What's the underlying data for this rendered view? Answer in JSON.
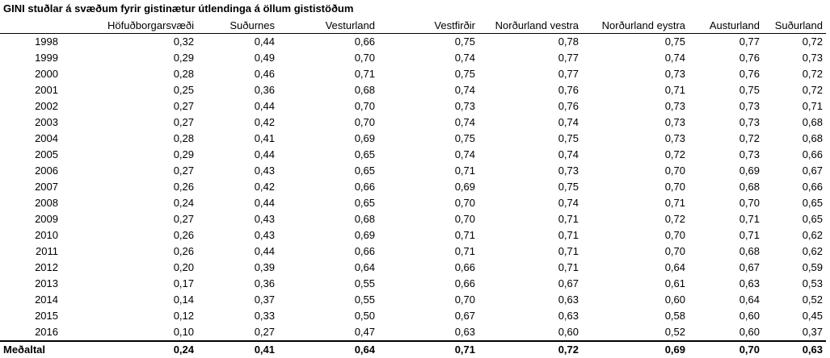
{
  "title": "GINI stuðlar á svæðum fyrir gistinætur útlendinga á öllum gististöðum",
  "chart_data": {
    "type": "table",
    "columns": [
      "",
      "Höfuðborgarsvæði",
      "Suðurnes",
      "Vesturland",
      "Vestfirðir",
      "Norðurland vestra",
      "Norðurland eystra",
      "Austurland",
      "Suðurland"
    ],
    "rows": [
      {
        "year": "1998",
        "values": [
          "0,32",
          "0,44",
          "0,66",
          "0,75",
          "0,78",
          "0,75",
          "0,77",
          "0,72"
        ]
      },
      {
        "year": "1999",
        "values": [
          "0,29",
          "0,49",
          "0,70",
          "0,74",
          "0,77",
          "0,74",
          "0,76",
          "0,73"
        ]
      },
      {
        "year": "2000",
        "values": [
          "0,28",
          "0,46",
          "0,71",
          "0,75",
          "0,77",
          "0,73",
          "0,76",
          "0,72"
        ]
      },
      {
        "year": "2001",
        "values": [
          "0,25",
          "0,36",
          "0,68",
          "0,74",
          "0,76",
          "0,71",
          "0,75",
          "0,72"
        ]
      },
      {
        "year": "2002",
        "values": [
          "0,27",
          "0,44",
          "0,70",
          "0,73",
          "0,76",
          "0,73",
          "0,73",
          "0,71"
        ]
      },
      {
        "year": "2003",
        "values": [
          "0,27",
          "0,42",
          "0,70",
          "0,74",
          "0,74",
          "0,73",
          "0,73",
          "0,68"
        ]
      },
      {
        "year": "2004",
        "values": [
          "0,28",
          "0,41",
          "0,69",
          "0,75",
          "0,75",
          "0,73",
          "0,72",
          "0,68"
        ]
      },
      {
        "year": "2005",
        "values": [
          "0,29",
          "0,44",
          "0,65",
          "0,74",
          "0,74",
          "0,72",
          "0,73",
          "0,66"
        ]
      },
      {
        "year": "2006",
        "values": [
          "0,27",
          "0,43",
          "0,65",
          "0,71",
          "0,73",
          "0,70",
          "0,69",
          "0,67"
        ]
      },
      {
        "year": "2007",
        "values": [
          "0,26",
          "0,42",
          "0,66",
          "0,69",
          "0,75",
          "0,70",
          "0,68",
          "0,66"
        ]
      },
      {
        "year": "2008",
        "values": [
          "0,24",
          "0,44",
          "0,65",
          "0,70",
          "0,74",
          "0,71",
          "0,70",
          "0,65"
        ]
      },
      {
        "year": "2009",
        "values": [
          "0,27",
          "0,43",
          "0,68",
          "0,70",
          "0,71",
          "0,72",
          "0,71",
          "0,65"
        ]
      },
      {
        "year": "2010",
        "values": [
          "0,26",
          "0,43",
          "0,69",
          "0,71",
          "0,71",
          "0,70",
          "0,71",
          "0,62"
        ]
      },
      {
        "year": "2011",
        "values": [
          "0,26",
          "0,44",
          "0,66",
          "0,71",
          "0,71",
          "0,70",
          "0,68",
          "0,62"
        ]
      },
      {
        "year": "2012",
        "values": [
          "0,20",
          "0,39",
          "0,64",
          "0,66",
          "0,71",
          "0,64",
          "0,67",
          "0,59"
        ]
      },
      {
        "year": "2013",
        "values": [
          "0,17",
          "0,36",
          "0,55",
          "0,66",
          "0,67",
          "0,61",
          "0,63",
          "0,53"
        ]
      },
      {
        "year": "2014",
        "values": [
          "0,14",
          "0,37",
          "0,55",
          "0,70",
          "0,63",
          "0,60",
          "0,64",
          "0,52"
        ]
      },
      {
        "year": "2015",
        "values": [
          "0,12",
          "0,33",
          "0,50",
          "0,67",
          "0,63",
          "0,58",
          "0,60",
          "0,45"
        ]
      },
      {
        "year": "2016",
        "values": [
          "0,10",
          "0,27",
          "0,47",
          "0,63",
          "0,60",
          "0,52",
          "0,60",
          "0,37"
        ]
      }
    ],
    "summary": {
      "label": "Meðaltal",
      "values": [
        "0,24",
        "0,41",
        "0,64",
        "0,71",
        "0,72",
        "0,69",
        "0,70",
        "0,63"
      ]
    }
  }
}
